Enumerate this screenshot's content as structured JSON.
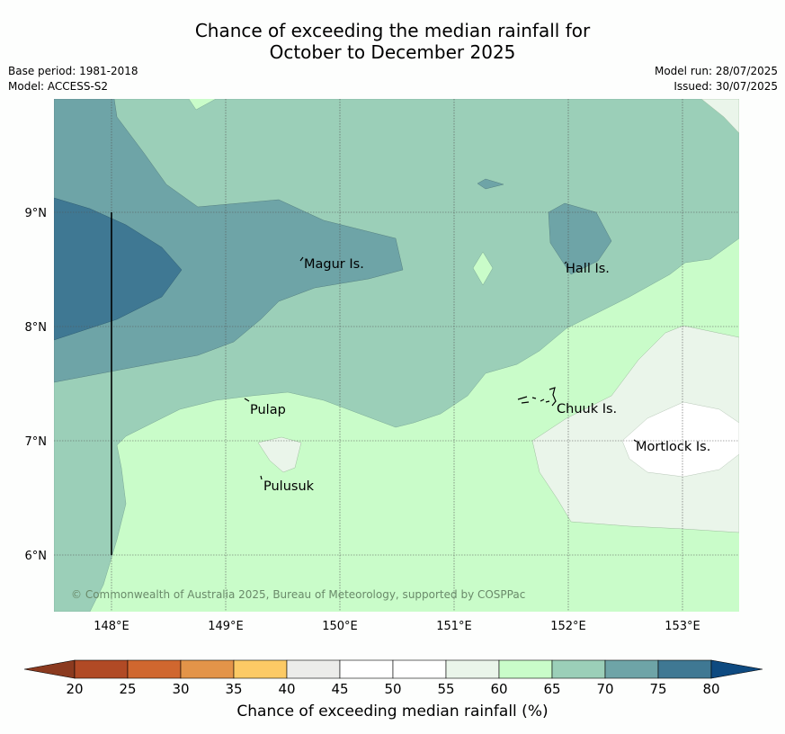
{
  "header": {
    "title_line1": "Chance of exceeding the median rainfall for",
    "title_line2": "October to December 2025",
    "base_period": "Base period: 1981-2018",
    "model": "Model: ACCESS-S2",
    "model_run": "Model run: 28/07/2025",
    "issued": "Issued: 30/07/2025"
  },
  "map": {
    "lon_ticks": [
      "148°E",
      "149°E",
      "150°E",
      "151°E",
      "152°E",
      "153°E"
    ],
    "lat_ticks": [
      "9°N",
      "8°N",
      "7°N",
      "6°N"
    ],
    "places": [
      {
        "name": "Magur Is."
      },
      {
        "name": "Hall Is."
      },
      {
        "name": "Pulap"
      },
      {
        "name": "Chuuk Is."
      },
      {
        "name": "Mortlock Is."
      },
      {
        "name": "Pulusuk"
      }
    ],
    "copyright": "© Commonwealth of Australia 2025, Bureau of Meteorology, supported by COSPPac"
  },
  "colorbar": {
    "title": "Chance of exceeding median rainfall (%)",
    "ticks": [
      "20",
      "25",
      "30",
      "35",
      "40",
      "45",
      "50",
      "55",
      "60",
      "65",
      "70",
      "75",
      "80"
    ],
    "under_color": "#8b3a1f",
    "over_color": "#0e4a80",
    "colors": [
      "#b14a25",
      "#d0672f",
      "#e39449",
      "#fcca65",
      "#ececea",
      "#ffffff",
      "#ffffff",
      "#eaf5ea",
      "#c9fcc9",
      "#9bcfb8",
      "#6ea4a7",
      "#3f7893"
    ]
  }
}
